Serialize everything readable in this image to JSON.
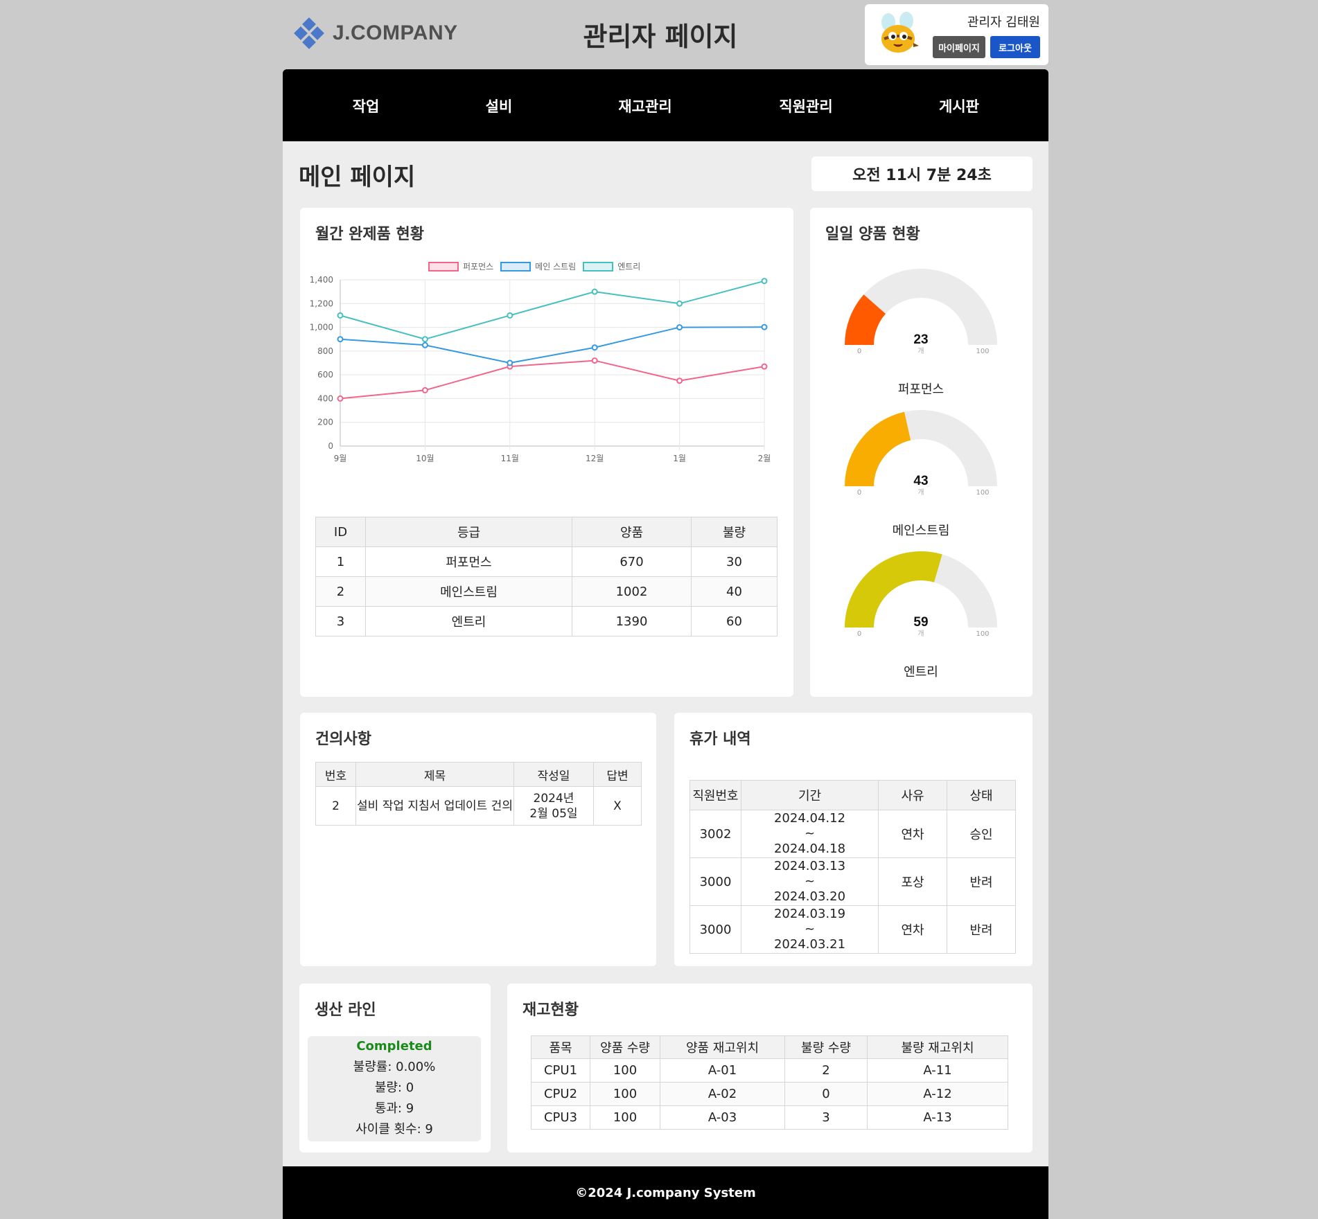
{
  "header": {
    "logo_text": "J.COMPANY",
    "site_title": "관리자 페이지",
    "user_name": "관리자 김태원",
    "mypage_label": "마이페이지",
    "logout_label": "로그아웃"
  },
  "nav": {
    "items": [
      "작업",
      "설비",
      "재고관리",
      "직원관리",
      "게시판"
    ]
  },
  "main": {
    "page_title": "메인 페이지",
    "clock": "오전 11시 7분 24초"
  },
  "monthly": {
    "title": "월간 완제품 현황",
    "table": {
      "headers": [
        "ID",
        "등급",
        "양품",
        "불량"
      ],
      "rows": [
        [
          "1",
          "퍼포먼스",
          "670",
          "30"
        ],
        [
          "2",
          "메인스트림",
          "1002",
          "40"
        ],
        [
          "3",
          "엔트리",
          "1390",
          "60"
        ]
      ]
    }
  },
  "chart_data": {
    "type": "line",
    "categories": [
      "9월",
      "10월",
      "11월",
      "12월",
      "1월",
      "2월"
    ],
    "ylim": [
      0,
      1400
    ],
    "yticks": [
      "0",
      "200",
      "400",
      "600",
      "800",
      "1,000",
      "1,200",
      "1,400"
    ],
    "grid": true,
    "legend": "top",
    "series": [
      {
        "name": "퍼포먼스",
        "color": "#f2648a",
        "values": [
          400,
          470,
          670,
          720,
          550,
          670
        ]
      },
      {
        "name": "메인 스트림",
        "color": "#3499e0",
        "values": [
          900,
          850,
          700,
          830,
          1000,
          1002
        ]
      },
      {
        "name": "엔트리",
        "color": "#45bfbf",
        "values": [
          1100,
          900,
          1100,
          1300,
          1200,
          1390
        ]
      }
    ]
  },
  "daily": {
    "title": "일일 양품 현황",
    "gauges": [
      {
        "name": "퍼포먼스",
        "value": "23",
        "fraction": 0.23,
        "color": "#ff5a00",
        "min": "0",
        "max": "100",
        "unit": "개"
      },
      {
        "name": "메인스트림",
        "value": "43",
        "fraction": 0.43,
        "color": "#f8ad00",
        "min": "0",
        "max": "100",
        "unit": "개"
      },
      {
        "name": "엔트리",
        "value": "59",
        "fraction": 0.59,
        "color": "#d6c90a",
        "min": "0",
        "max": "100",
        "unit": "개"
      }
    ]
  },
  "suggestions": {
    "title": "건의사항",
    "headers": [
      "번호",
      "제목",
      "작성일",
      "답변"
    ],
    "rows": [
      {
        "no": "2",
        "title": "설비 작업 지침서 업데이트 건의",
        "date_line1": "2024년",
        "date_line2": "2월 05일",
        "answer": "X"
      }
    ]
  },
  "vacation": {
    "title": "휴가 내역",
    "headers": [
      "직원번호",
      "기간",
      "사유",
      "상태"
    ],
    "rows": [
      {
        "id": "3002",
        "start": "2024.04.12",
        "sep": "~",
        "end": "2024.04.18",
        "reason": "연차",
        "status": "승인"
      },
      {
        "id": "3000",
        "start": "2024.03.13",
        "sep": "~",
        "end": "2024.03.20",
        "reason": "포상",
        "status": "반려"
      },
      {
        "id": "3000",
        "start": "2024.03.19",
        "sep": "~",
        "end": "2024.03.21",
        "reason": "연차",
        "status": "반려"
      }
    ]
  },
  "production_line": {
    "title": "생산 라인",
    "status": "Completed",
    "status_color": "#1a8a1a",
    "defect_rate": "불량률: 0.00%",
    "defects": "불량: 0",
    "passed": "통과: 9",
    "cycles": "사이클 횟수: 9"
  },
  "inventory": {
    "title": "재고현황",
    "headers": [
      "품목",
      "양품 수량",
      "양품 재고위치",
      "불량 수량",
      "불량 재고위치"
    ],
    "rows": [
      [
        "CPU1",
        "100",
        "A-01",
        "2",
        "A-11"
      ],
      [
        "CPU2",
        "100",
        "A-02",
        "0",
        "A-12"
      ],
      [
        "CPU3",
        "100",
        "A-03",
        "3",
        "A-13"
      ]
    ]
  },
  "footer": {
    "text": "©2024 J.company System"
  }
}
